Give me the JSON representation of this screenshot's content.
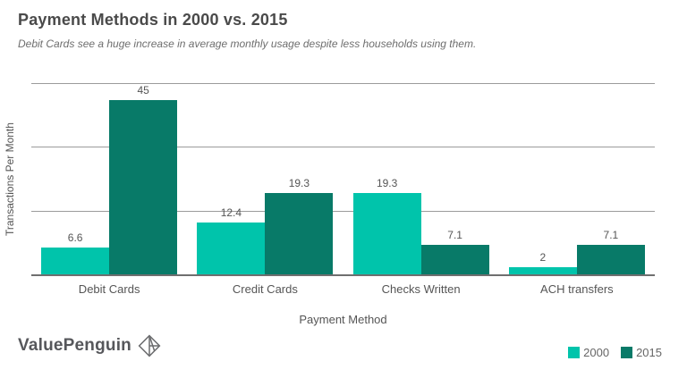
{
  "header": {
    "title": "Payment Methods in 2000 vs. 2015",
    "subtitle": "Debit Cards see a huge increase in average monthly usage despite less households using them."
  },
  "chart_data": {
    "type": "bar",
    "title": "Payment Methods in 2000 vs. 2015",
    "subtitle": "Debit Cards see a huge increase in average monthly usage despite less households using them.",
    "categories": [
      "Debit Cards",
      "Credit Cards",
      "Checks Written",
      "ACH transfers"
    ],
    "series": [
      {
        "name": "2000",
        "color": "#00c4ab",
        "values": [
          6.6,
          12.4,
          19.3,
          2
        ]
      },
      {
        "name": "2015",
        "color": "#087a68",
        "values": [
          45,
          19.3,
          7.1,
          7.1
        ]
      }
    ],
    "xlabel": "Payment Method",
    "ylabel": "Transactions Per Month",
    "ylim": [
      0,
      45
    ],
    "gridline_values": [
      15,
      30,
      45
    ],
    "grid": true,
    "y_tick_labels_visible": false,
    "legend_position": "bottom-right",
    "value_labels_visible": true
  },
  "footer": {
    "brand": "ValuePenguin",
    "brand_icon": "origami-penguin-icon"
  },
  "colors": {
    "series_2000": "#00c4ab",
    "series_2015": "#087a68",
    "title_text": "#4a4a4a",
    "subtitle_text": "#6e6e6e",
    "gridline": "#9b9b9b",
    "axis_line": "#6f6f6f",
    "label_text": "#555555",
    "brand_text": "#56575b"
  }
}
